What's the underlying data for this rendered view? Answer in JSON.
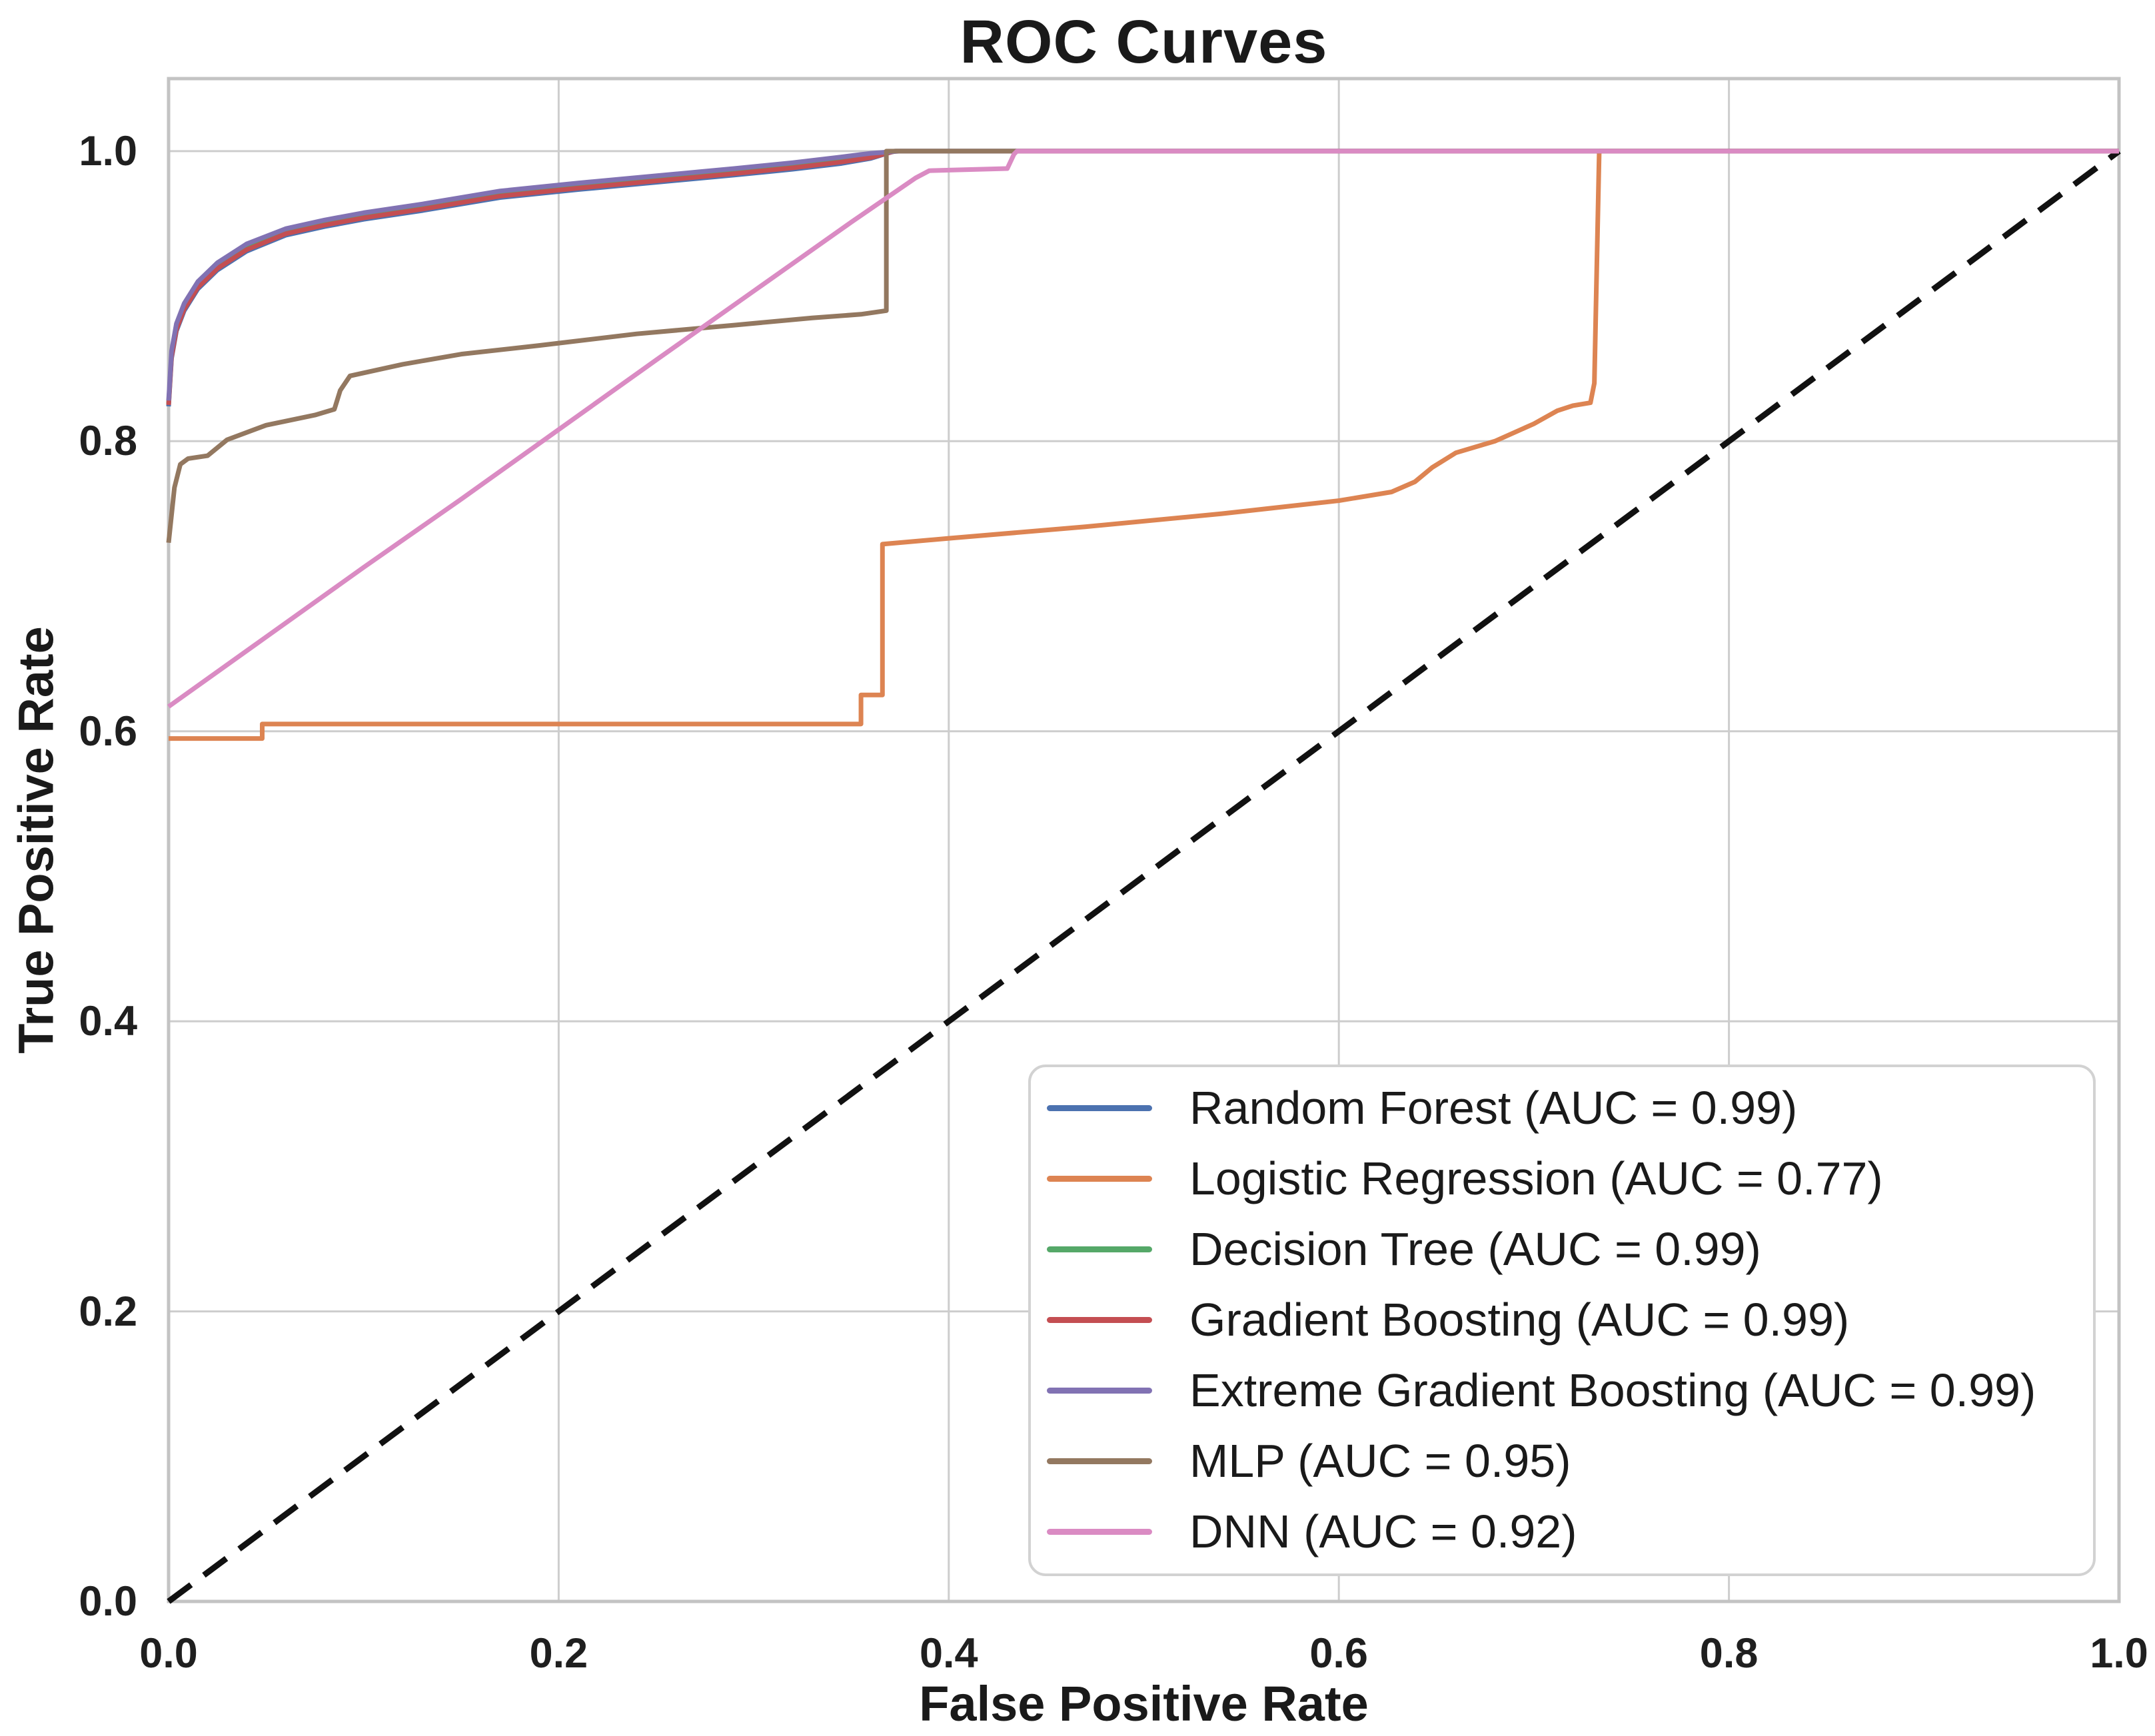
{
  "chart_data": {
    "type": "line",
    "title": "ROC Curves",
    "xlabel": "False Positive Rate",
    "ylabel": "True Positive Rate",
    "xlim": [
      0.0,
      1.0
    ],
    "ylim": [
      0.0,
      1.05
    ],
    "xticks": [
      "0.0",
      "0.2",
      "0.4",
      "0.6",
      "0.8",
      "1.0"
    ],
    "yticks": [
      "0.0",
      "0.2",
      "0.4",
      "0.6",
      "0.8",
      "1.0"
    ],
    "grid": true,
    "grid_color": "#cdcdcd",
    "spine_color": "#c3c3c3",
    "legend_position": "lower right",
    "reference_line": {
      "name": "chance-diagonal",
      "style": "dashed",
      "color": "#111111",
      "points": [
        [
          0.0,
          0.0
        ],
        [
          1.0,
          1.0
        ]
      ]
    },
    "series": [
      {
        "name": "random-forest",
        "label": "Random Forest (AUC = 0.99)",
        "auc": 0.99,
        "color": "#4C72B0",
        "points": [
          [
            0,
            0.824
          ],
          [
            0.0015,
            0.857
          ],
          [
            0.004,
            0.876
          ],
          [
            0.008,
            0.89
          ],
          [
            0.015,
            0.905
          ],
          [
            0.025,
            0.918
          ],
          [
            0.04,
            0.931
          ],
          [
            0.06,
            0.942
          ],
          [
            0.08,
            0.948
          ],
          [
            0.1,
            0.953
          ],
          [
            0.13,
            0.959
          ],
          [
            0.17,
            0.968
          ],
          [
            0.21,
            0.9735
          ],
          [
            0.25,
            0.9785
          ],
          [
            0.29,
            0.9835
          ],
          [
            0.32,
            0.9875
          ],
          [
            0.345,
            0.9915
          ],
          [
            0.36,
            0.995
          ],
          [
            0.372,
            1.0
          ],
          [
            1,
            1
          ]
        ]
      },
      {
        "name": "logistic-regression",
        "label": "Logistic Regression (AUC = 0.77)",
        "auc": 0.77,
        "color": "#DD8452",
        "points": [
          [
            0,
            0.595
          ],
          [
            0.048,
            0.595
          ],
          [
            0.048,
            0.605
          ],
          [
            0.355,
            0.605
          ],
          [
            0.355,
            0.625
          ],
          [
            0.366,
            0.625
          ],
          [
            0.366,
            0.729
          ],
          [
            0.4,
            0.733
          ],
          [
            0.47,
            0.741
          ],
          [
            0.54,
            0.75
          ],
          [
            0.6,
            0.759
          ],
          [
            0.627,
            0.765
          ],
          [
            0.639,
            0.772
          ],
          [
            0.648,
            0.782
          ],
          [
            0.66,
            0.792
          ],
          [
            0.68,
            0.8
          ],
          [
            0.7,
            0.812
          ],
          [
            0.712,
            0.821
          ],
          [
            0.72,
            0.8245
          ],
          [
            0.729,
            0.8265
          ],
          [
            0.731,
            0.84
          ],
          [
            0.7335,
            1.0
          ],
          [
            1,
            1
          ]
        ]
      },
      {
        "name": "decision-tree",
        "label": "Decision Tree (AUC = 0.99)",
        "auc": 0.99,
        "color": "#55A868",
        "points": [
          [
            0,
            0.826
          ],
          [
            0.0015,
            0.859
          ],
          [
            0.004,
            0.878
          ],
          [
            0.008,
            0.8925
          ],
          [
            0.015,
            0.9075
          ],
          [
            0.025,
            0.9205
          ],
          [
            0.04,
            0.9335
          ],
          [
            0.06,
            0.944
          ],
          [
            0.08,
            0.95
          ],
          [
            0.1,
            0.955
          ],
          [
            0.13,
            0.961
          ],
          [
            0.17,
            0.97
          ],
          [
            0.21,
            0.9755
          ],
          [
            0.25,
            0.9805
          ],
          [
            0.29,
            0.9855
          ],
          [
            0.32,
            0.9895
          ],
          [
            0.345,
            0.9935
          ],
          [
            0.36,
            0.9965
          ],
          [
            0.373,
            1.0
          ],
          [
            1,
            1
          ]
        ]
      },
      {
        "name": "gradient-boosting",
        "label": "Gradient Boosting (AUC = 0.99)",
        "auc": 0.99,
        "color": "#C44E52",
        "points": [
          [
            0,
            0.825
          ],
          [
            0.0015,
            0.858
          ],
          [
            0.004,
            0.877
          ],
          [
            0.008,
            0.891
          ],
          [
            0.015,
            0.906
          ],
          [
            0.025,
            0.919
          ],
          [
            0.04,
            0.932
          ],
          [
            0.06,
            0.943
          ],
          [
            0.08,
            0.949
          ],
          [
            0.1,
            0.954
          ],
          [
            0.13,
            0.96
          ],
          [
            0.17,
            0.969
          ],
          [
            0.21,
            0.9745
          ],
          [
            0.25,
            0.9795
          ],
          [
            0.29,
            0.9845
          ],
          [
            0.32,
            0.9885
          ],
          [
            0.345,
            0.9925
          ],
          [
            0.36,
            0.9955
          ],
          [
            0.3725,
            1.0
          ],
          [
            1,
            1
          ]
        ]
      },
      {
        "name": "extreme-gradient-boosting",
        "label": "Extreme Gradient Boosting (AUC = 0.99)",
        "auc": 0.99,
        "color": "#8172B3",
        "points": [
          [
            0,
            0.828
          ],
          [
            0.0015,
            0.862
          ],
          [
            0.004,
            0.881
          ],
          [
            0.008,
            0.895
          ],
          [
            0.015,
            0.91
          ],
          [
            0.025,
            0.923
          ],
          [
            0.04,
            0.936
          ],
          [
            0.06,
            0.9465
          ],
          [
            0.08,
            0.9525
          ],
          [
            0.1,
            0.9575
          ],
          [
            0.13,
            0.9635
          ],
          [
            0.17,
            0.9725
          ],
          [
            0.21,
            0.978
          ],
          [
            0.25,
            0.983
          ],
          [
            0.29,
            0.988
          ],
          [
            0.32,
            0.992
          ],
          [
            0.345,
            0.996
          ],
          [
            0.36,
            0.9985
          ],
          [
            0.375,
            1.0
          ],
          [
            1,
            1
          ]
        ]
      },
      {
        "name": "mlp",
        "label": "MLP (AUC = 0.95)",
        "auc": 0.95,
        "color": "#937860",
        "points": [
          [
            0,
            0.73
          ],
          [
            0.003,
            0.768
          ],
          [
            0.006,
            0.784
          ],
          [
            0.01,
            0.788
          ],
          [
            0.02,
            0.79
          ],
          [
            0.03,
            0.801
          ],
          [
            0.05,
            0.811
          ],
          [
            0.075,
            0.818
          ],
          [
            0.085,
            0.822
          ],
          [
            0.088,
            0.835
          ],
          [
            0.093,
            0.845
          ],
          [
            0.12,
            0.853
          ],
          [
            0.15,
            0.86
          ],
          [
            0.19,
            0.866
          ],
          [
            0.24,
            0.874
          ],
          [
            0.29,
            0.88
          ],
          [
            0.33,
            0.885
          ],
          [
            0.355,
            0.8875
          ],
          [
            0.368,
            0.89
          ],
          [
            0.368,
            1.0
          ],
          [
            1,
            1
          ]
        ]
      },
      {
        "name": "dnn",
        "label": "DNN (AUC = 0.92)",
        "auc": 0.92,
        "color": "#DA8BC3",
        "points": [
          [
            0,
            0.617
          ],
          [
            0.05,
            0.665
          ],
          [
            0.1,
            0.713
          ],
          [
            0.15,
            0.76
          ],
          [
            0.2,
            0.808
          ],
          [
            0.25,
            0.856
          ],
          [
            0.3,
            0.9035
          ],
          [
            0.35,
            0.951
          ],
          [
            0.383,
            0.9815
          ],
          [
            0.39,
            0.9865
          ],
          [
            0.43,
            0.988
          ],
          [
            0.4335,
            0.998
          ],
          [
            0.435,
            1.0
          ],
          [
            1,
            1
          ]
        ]
      }
    ]
  }
}
